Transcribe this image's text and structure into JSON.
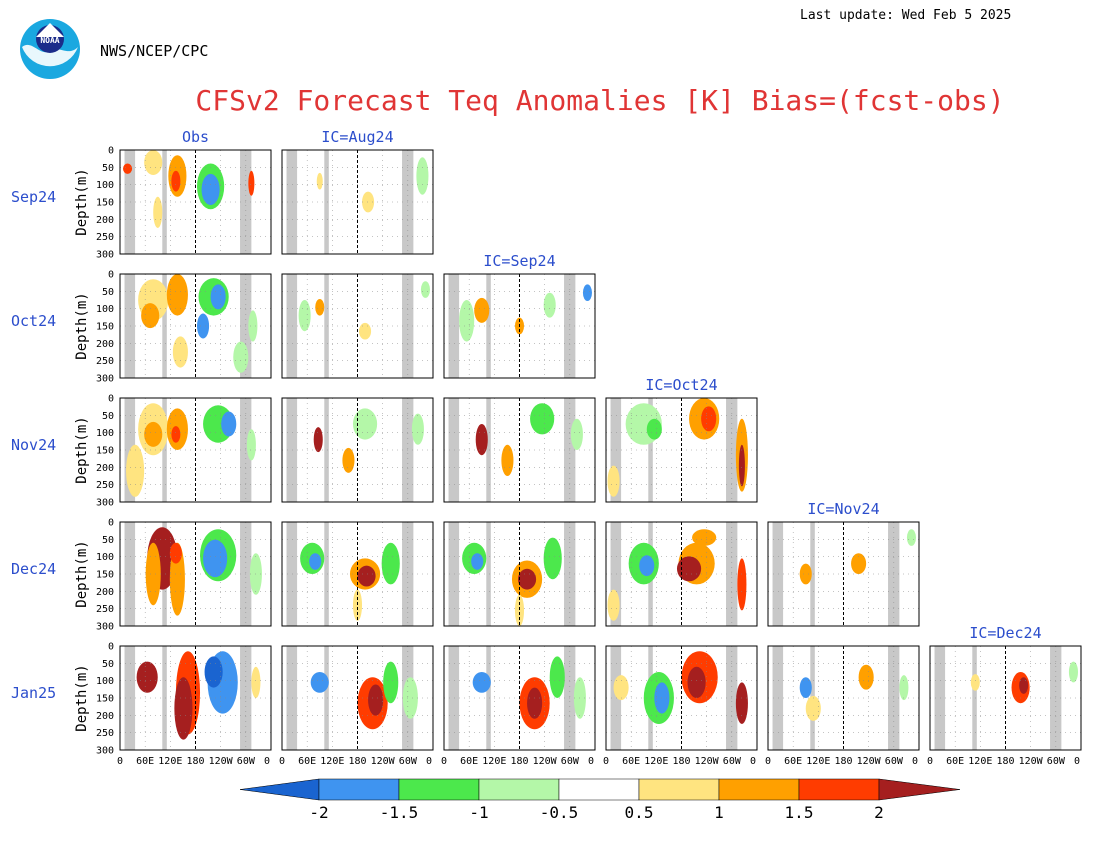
{
  "header": {
    "last_update": "Last update: Wed Feb 5 2025",
    "agency": "NWS/NCEP/CPC",
    "logo_text": "NOAA",
    "title": "CFSv2 Forecast Teq Anomalies [K] Bias=(fcst-obs)"
  },
  "chart_data": {
    "type": "heatmap",
    "title": "CFSv2 Forecast Teq Anomalies [K] Bias=(fcst-obs)",
    "ylabel": "Depth(m)",
    "ylim": [
      0,
      300
    ],
    "y_ticks": [
      "0",
      "50",
      "100",
      "150",
      "200",
      "250",
      "300"
    ],
    "x_ticks": [
      "0",
      "60E",
      "120E",
      "180",
      "120W",
      "60W",
      "0"
    ],
    "row_labels": [
      "Sep24",
      "Oct24",
      "Nov24",
      "Dec24",
      "Jan25"
    ],
    "column_labels": [
      "Obs",
      "IC=Aug24",
      "IC=Sep24",
      "IC=Oct24",
      "IC=Nov24",
      "IC=Dec24"
    ],
    "colorbar": {
      "ticks": [
        "-2",
        "-1.5",
        "-1",
        "-0.5",
        "0.5",
        "1",
        "1.5",
        "2"
      ],
      "colors": [
        "#1a64d0",
        "#3f94f0",
        "#4ce84c",
        "#b4f7a8",
        "#ffffff",
        "#ffe480",
        "#ffa000",
        "#ff3c00",
        "#a51f1f"
      ]
    }
  }
}
